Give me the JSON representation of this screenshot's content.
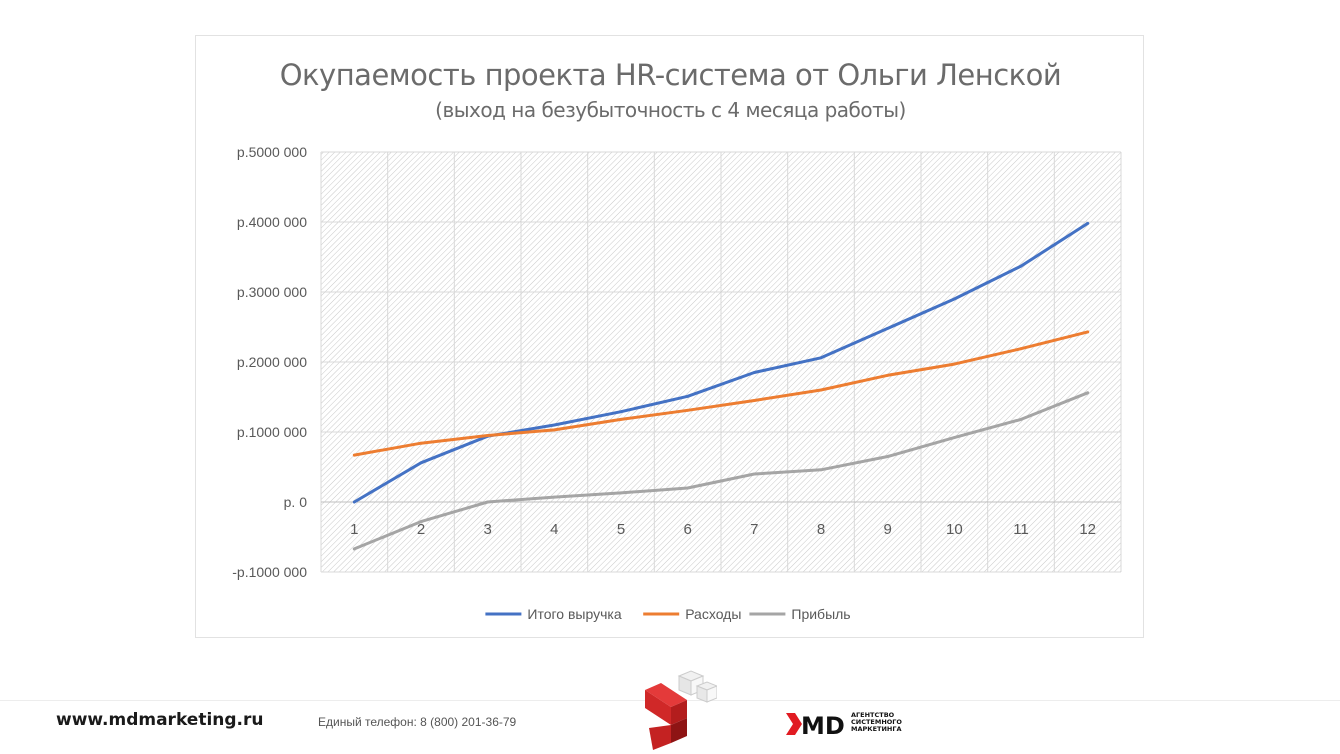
{
  "chart_data": {
    "type": "line",
    "title": "Окупаемость проекта HR-система от Ольги Ленской",
    "subtitle": "(выход на безубыточность с 4 месяца работы)",
    "categories": [
      "1",
      "2",
      "3",
      "4",
      "5",
      "6",
      "7",
      "8",
      "9",
      "10",
      "11",
      "12"
    ],
    "ylim": [
      -1000000,
      5000000
    ],
    "y_ticks": [
      -1000000,
      0,
      1000000,
      2000000,
      3000000,
      4000000,
      5000000
    ],
    "y_tick_labels": [
      "-р.1000 000",
      "р. 0",
      "р.1000 000",
      "р.2000 000",
      "р.3000 000",
      "р.4000 000",
      "р.5000 000"
    ],
    "grid": true,
    "legend_position": "bottom",
    "series": [
      {
        "name": "Итого выручка",
        "color": "#4472C4",
        "values": [
          0,
          560000,
          940000,
          1100000,
          1290000,
          1510000,
          1850000,
          2060000,
          2480000,
          2900000,
          3370000,
          3980000
        ]
      },
      {
        "name": "Расходы",
        "color": "#ED7D31",
        "values": [
          670000,
          840000,
          950000,
          1030000,
          1180000,
          1310000,
          1450000,
          1600000,
          1810000,
          1970000,
          2190000,
          2430000
        ]
      },
      {
        "name": "Прибыль",
        "color": "#A5A5A5",
        "values": [
          -670000,
          -280000,
          0,
          70000,
          130000,
          200000,
          400000,
          460000,
          650000,
          920000,
          1180000,
          1560000
        ]
      }
    ]
  },
  "footer": {
    "site": "www.mdmarketing.ru",
    "phone": "Единый телефон: 8 (800) 201-36-79",
    "agency_lines": [
      "АГЕНТСТВО",
      "СИСТЕМНОГО",
      "МАРКЕТИНГА"
    ]
  }
}
